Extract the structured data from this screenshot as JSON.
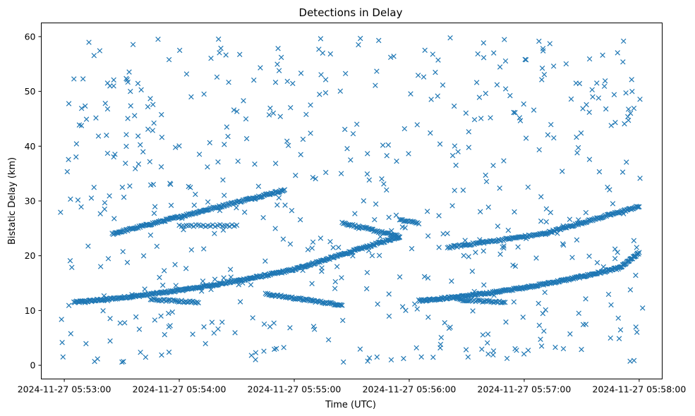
{
  "chart_data": {
    "type": "scatter",
    "title": "Detections in Delay",
    "xlabel": "Time (UTC)",
    "ylabel": "Bistatic Delay (km)",
    "x_unit": "seconds after 2024-11-27 05:53:00 UTC",
    "xlim": [
      -12,
      312
    ],
    "ylim": [
      -2.5,
      62.5
    ],
    "x_ticks": [
      {
        "value": 0,
        "label": "2024-11-27 05:53:00"
      },
      {
        "value": 60,
        "label": "2024-11-27 05:54:00"
      },
      {
        "value": 120,
        "label": "2024-11-27 05:55:00"
      },
      {
        "value": 180,
        "label": "2024-11-27 05:56:00"
      },
      {
        "value": 240,
        "label": "2024-11-27 05:57:00"
      },
      {
        "value": 300,
        "label": "2024-11-27 05:58:00"
      }
    ],
    "y_ticks": [
      0,
      10,
      20,
      30,
      40,
      50,
      60
    ],
    "marker": "x",
    "color": "#1f77b4",
    "grid": false,
    "legend": "none",
    "series": [
      {
        "name": "",
        "tracks": [
          {
            "x": [
              5,
              120
            ],
            "y": [
              11.5,
              17.5
            ],
            "n": 250,
            "curve": 0.45
          },
          {
            "x": [
              120,
              175
            ],
            "y": [
              17.5,
              23.5
            ],
            "n": 120,
            "curve": 0
          },
          {
            "x": [
              185,
              290
            ],
            "y": [
              11.8,
              17.8
            ],
            "n": 230,
            "curve": 0.5
          },
          {
            "x": [
              290,
              300
            ],
            "y": [
              17.8,
              20.5
            ],
            "n": 30,
            "curve": 0
          },
          {
            "x": [
              25,
              115
            ],
            "y": [
              24.0,
              32.0
            ],
            "n": 180,
            "curve": 0
          },
          {
            "x": [
              105,
              145
            ],
            "y": [
              13.0,
              11.0
            ],
            "n": 70,
            "curve": 0
          },
          {
            "x": [
              145,
              175
            ],
            "y": [
              26.0,
              23.5
            ],
            "n": 50,
            "curve": 0
          },
          {
            "x": [
              200,
              250
            ],
            "y": [
              21.5,
              24.0
            ],
            "n": 80,
            "curve": 0
          },
          {
            "x": [
              250,
              300
            ],
            "y": [
              24.0,
              29.0
            ],
            "n": 100,
            "curve": 0
          },
          {
            "x": [
              45,
              70
            ],
            "y": [
              12.0,
              11.5
            ],
            "n": 35,
            "curve": 0
          },
          {
            "x": [
              205,
              230
            ],
            "y": [
              12.0,
              11.5
            ],
            "n": 35,
            "curve": 0
          },
          {
            "x": [
              60,
              90
            ],
            "y": [
              25.5,
              25.5
            ],
            "n": 25,
            "curve": 0
          },
          {
            "x": [
              175,
              185
            ],
            "y": [
              26.5,
              26.0
            ],
            "n": 15,
            "curve": 0
          }
        ],
        "noise": {
          "n": 560,
          "x_range": [
            -2,
            302
          ],
          "y_range": [
            0.5,
            59.8
          ]
        }
      }
    ]
  }
}
